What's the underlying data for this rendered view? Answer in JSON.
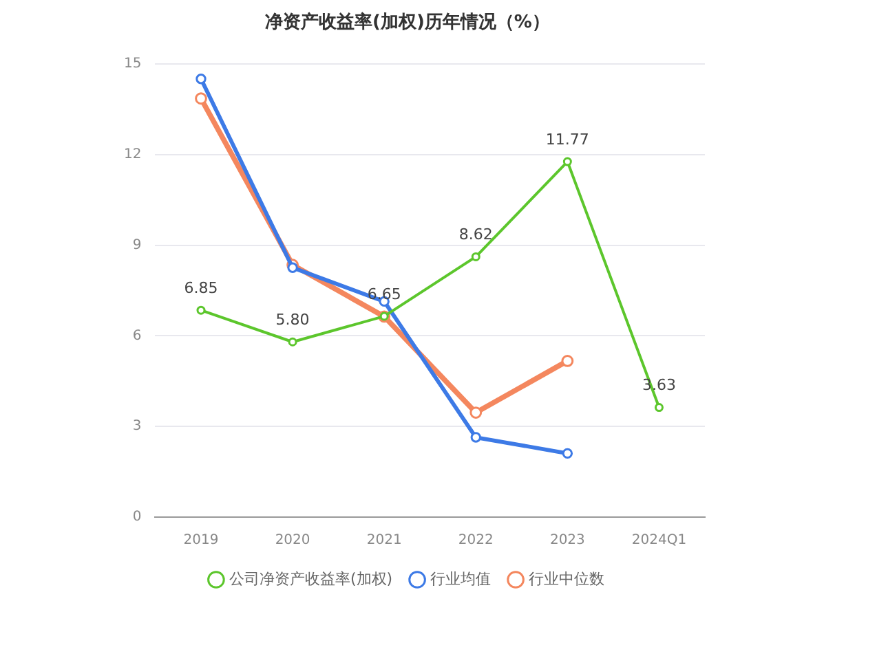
{
  "chart_data": {
    "type": "line",
    "title": "净资产收益率(加权)历年情况（%）",
    "categories": [
      "2019",
      "2020",
      "2021",
      "2022",
      "2023",
      "2024Q1"
    ],
    "series": [
      {
        "name": "公司净资产收益率(加权)",
        "color": "#5cc62c",
        "values": [
          6.85,
          5.8,
          6.65,
          8.62,
          11.77,
          3.63
        ],
        "value_labels": [
          "6.85",
          "5.80",
          "6.65",
          "8.62",
          "11.77",
          "3.63"
        ]
      },
      {
        "name": "行业均值",
        "color": "#3d7ae6",
        "values": [
          14.51,
          8.26,
          7.14,
          2.64,
          2.11,
          null
        ]
      },
      {
        "name": "行业中位数",
        "color": "#f4875e",
        "values": [
          13.86,
          8.35,
          6.64,
          3.46,
          5.17,
          null
        ]
      }
    ],
    "ylim": [
      0,
      15
    ],
    "yticks": [
      0,
      3,
      6,
      9,
      12,
      15
    ],
    "grid": "y",
    "legend": "bottom",
    "marker": "circle",
    "line_style": "solid"
  }
}
